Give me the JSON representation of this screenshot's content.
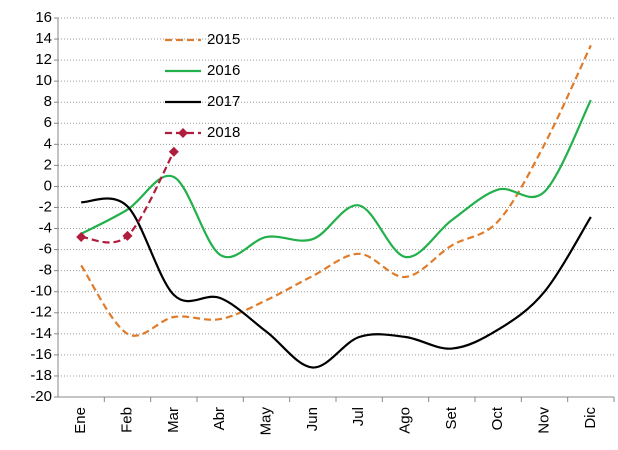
{
  "chart_data": {
    "type": "line",
    "categories": [
      "Ene",
      "Feb",
      "Mar",
      "Abr",
      "May",
      "Jun",
      "Jul",
      "Ago",
      "Set",
      "Oct",
      "Nov",
      "Dic"
    ],
    "series": [
      {
        "name": "2015",
        "color": "#e07b2a",
        "dashed": true,
        "values": [
          -7.5,
          -14,
          -12.4,
          -12.6,
          -10.8,
          -8.5,
          -6.4,
          -8.6,
          -5.6,
          -3.3,
          4,
          13.4
        ]
      },
      {
        "name": "2016",
        "color": "#22b04b",
        "dashed": false,
        "values": [
          -4.5,
          -2.2,
          0.9,
          -6.5,
          -4.8,
          -5,
          -1.8,
          -6.7,
          -3.2,
          -0.3,
          -0.5,
          8.2
        ]
      },
      {
        "name": "2017",
        "color": "#000000",
        "dashed": false,
        "values": [
          -1.5,
          -1.9,
          -10.3,
          -10.6,
          -13.8,
          -17.2,
          -14.3,
          -14.3,
          -15.4,
          -13.6,
          -10,
          -2.9
        ]
      },
      {
        "name": "2018",
        "color": "#b01c3c",
        "dashed": true,
        "marker": "diamond",
        "values": [
          -4.8,
          -4.7,
          3.3,
          null,
          null,
          null,
          null,
          null,
          null,
          null,
          null,
          null
        ]
      }
    ],
    "ylim": [
      -20,
      16
    ],
    "yticks": [
      -20,
      -18,
      -16,
      -14,
      -12,
      -10,
      -8,
      -6,
      -4,
      -2,
      0,
      2,
      4,
      6,
      8,
      10,
      12,
      14,
      16
    ],
    "grid": true
  }
}
